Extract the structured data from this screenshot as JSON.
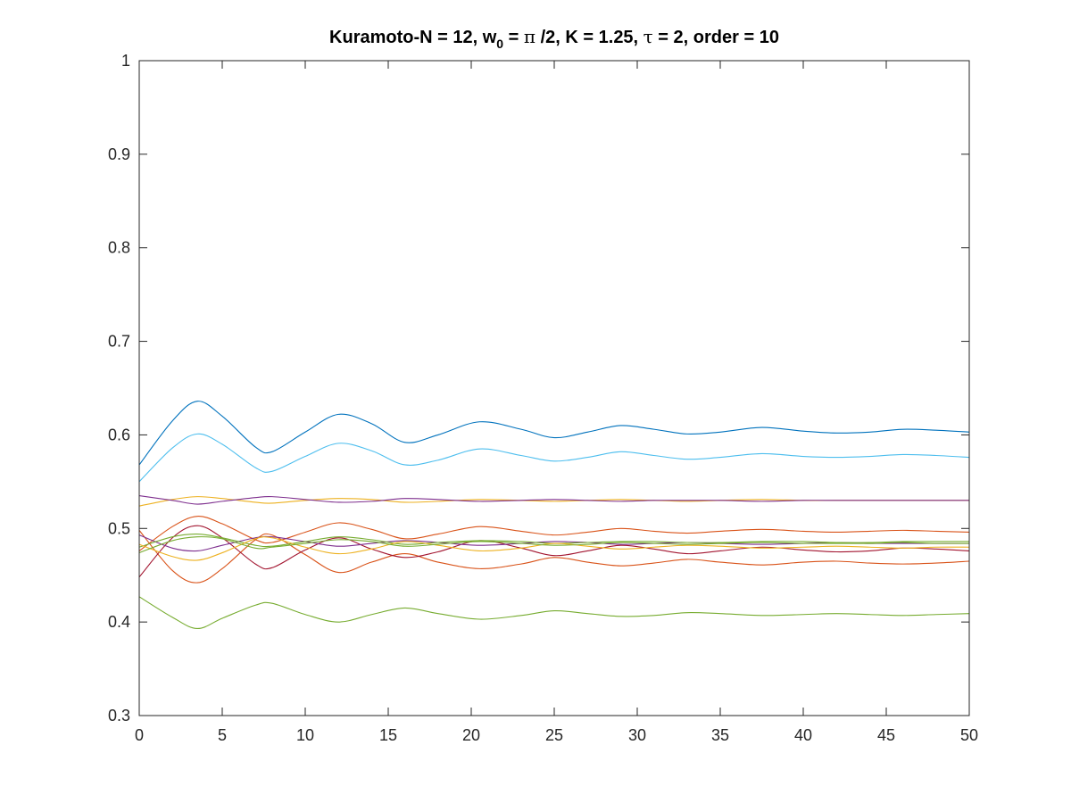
{
  "chart_data": {
    "type": "line",
    "title": {
      "prefix": "Kuramoto-N = 12, w",
      "subscript": "0",
      "mid1": " = ",
      "pi": "π",
      "mid2": " /2, K = 1.25, ",
      "tau": "τ",
      "suffix": " = 2, order = 10"
    },
    "xlabel": "",
    "ylabel": "",
    "xlim": [
      0,
      50
    ],
    "ylim": [
      0.3,
      1
    ],
    "xticks": [
      0,
      5,
      10,
      15,
      20,
      25,
      30,
      35,
      40,
      45,
      50
    ],
    "xtick_labels": [
      "0",
      "5",
      "10",
      "15",
      "20",
      "25",
      "30",
      "35",
      "40",
      "45",
      "50"
    ],
    "yticks": [
      0.3,
      0.4,
      0.5,
      0.6,
      0.7,
      0.8,
      0.9,
      1
    ],
    "ytick_labels": [
      "0.3",
      "0.4",
      "0.5",
      "0.6",
      "0.7",
      "0.8",
      "0.9",
      "1"
    ],
    "grid": false,
    "legend": "none",
    "x": [
      0,
      2,
      3.5,
      5,
      7,
      8,
      10,
      12,
      14,
      16,
      18,
      20.5,
      23,
      25,
      27,
      29,
      31,
      33,
      35,
      37.5,
      40,
      42,
      44,
      46,
      48,
      50
    ],
    "series": [
      {
        "color": "#0072BD",
        "values": [
          0.568,
          0.615,
          0.636,
          0.62,
          0.587,
          0.582,
          0.603,
          0.622,
          0.612,
          0.592,
          0.6,
          0.614,
          0.606,
          0.597,
          0.603,
          0.61,
          0.606,
          0.601,
          0.603,
          0.608,
          0.604,
          0.602,
          0.603,
          0.606,
          0.605,
          0.603
        ]
      },
      {
        "color": "#4DBEEE",
        "values": [
          0.55,
          0.586,
          0.601,
          0.59,
          0.565,
          0.561,
          0.577,
          0.591,
          0.583,
          0.568,
          0.573,
          0.585,
          0.578,
          0.572,
          0.576,
          0.582,
          0.578,
          0.574,
          0.576,
          0.58,
          0.577,
          0.576,
          0.577,
          0.579,
          0.578,
          0.576
        ]
      },
      {
        "color": "#EDB120",
        "values": [
          0.524,
          0.531,
          0.534,
          0.532,
          0.528,
          0.527,
          0.53,
          0.532,
          0.531,
          0.528,
          0.529,
          0.531,
          0.53,
          0.529,
          0.53,
          0.531,
          0.53,
          0.529,
          0.53,
          0.531,
          0.53,
          0.53,
          0.53,
          0.53,
          0.53,
          0.53
        ]
      },
      {
        "color": "#7E2F8E",
        "values": [
          0.535,
          0.53,
          0.526,
          0.529,
          0.533,
          0.534,
          0.531,
          0.528,
          0.529,
          0.532,
          0.531,
          0.529,
          0.53,
          0.531,
          0.53,
          0.529,
          0.53,
          0.53,
          0.53,
          0.529,
          0.53,
          0.53,
          0.53,
          0.53,
          0.53,
          0.53
        ]
      },
      {
        "color": "#D95319",
        "values": [
          0.476,
          0.502,
          0.513,
          0.505,
          0.488,
          0.485,
          0.496,
          0.506,
          0.499,
          0.489,
          0.494,
          0.502,
          0.497,
          0.493,
          0.496,
          0.5,
          0.497,
          0.495,
          0.497,
          0.499,
          0.497,
          0.496,
          0.497,
          0.498,
          0.497,
          0.496
        ]
      },
      {
        "color": "#D95319",
        "values": [
          0.498,
          0.455,
          0.442,
          0.457,
          0.488,
          0.493,
          0.472,
          0.453,
          0.464,
          0.473,
          0.464,
          0.457,
          0.462,
          0.469,
          0.464,
          0.46,
          0.463,
          0.467,
          0.464,
          0.461,
          0.464,
          0.465,
          0.463,
          0.462,
          0.463,
          0.465
        ]
      },
      {
        "color": "#A2142F",
        "values": [
          0.448,
          0.49,
          0.503,
          0.49,
          0.462,
          0.458,
          0.477,
          0.49,
          0.478,
          0.469,
          0.475,
          0.487,
          0.479,
          0.471,
          0.476,
          0.482,
          0.478,
          0.473,
          0.476,
          0.48,
          0.477,
          0.475,
          0.476,
          0.479,
          0.478,
          0.476
        ]
      },
      {
        "color": "#7E2F8E",
        "values": [
          0.493,
          0.479,
          0.476,
          0.482,
          0.49,
          0.491,
          0.486,
          0.481,
          0.484,
          0.487,
          0.485,
          0.482,
          0.484,
          0.486,
          0.485,
          0.483,
          0.484,
          0.485,
          0.484,
          0.483,
          0.484,
          0.485,
          0.484,
          0.484,
          0.484,
          0.484
        ]
      },
      {
        "color": "#77AC30",
        "values": [
          0.48,
          0.491,
          0.494,
          0.49,
          0.482,
          0.481,
          0.486,
          0.491,
          0.488,
          0.483,
          0.485,
          0.487,
          0.486,
          0.484,
          0.485,
          0.486,
          0.486,
          0.485,
          0.485,
          0.486,
          0.486,
          0.485,
          0.485,
          0.486,
          0.486,
          0.486
        ]
      },
      {
        "color": "#EDB120",
        "values": [
          0.483,
          0.47,
          0.466,
          0.474,
          0.489,
          0.49,
          0.48,
          0.473,
          0.478,
          0.486,
          0.482,
          0.476,
          0.479,
          0.484,
          0.481,
          0.478,
          0.48,
          0.482,
          0.481,
          0.479,
          0.48,
          0.481,
          0.48,
          0.479,
          0.48,
          0.48
        ]
      },
      {
        "color": "#77AC30",
        "values": [
          0.474,
          0.487,
          0.491,
          0.489,
          0.479,
          0.48,
          0.484,
          0.488,
          0.486,
          0.481,
          0.483,
          0.486,
          0.484,
          0.482,
          0.483,
          0.485,
          0.484,
          0.483,
          0.484,
          0.485,
          0.484,
          0.484,
          0.484,
          0.485,
          0.484,
          0.484
        ]
      },
      {
        "color": "#77AC30",
        "values": [
          0.427,
          0.405,
          0.393,
          0.404,
          0.418,
          0.42,
          0.408,
          0.4,
          0.408,
          0.415,
          0.409,
          0.403,
          0.407,
          0.412,
          0.409,
          0.406,
          0.407,
          0.41,
          0.409,
          0.407,
          0.408,
          0.409,
          0.408,
          0.407,
          0.408,
          0.409
        ]
      }
    ]
  }
}
